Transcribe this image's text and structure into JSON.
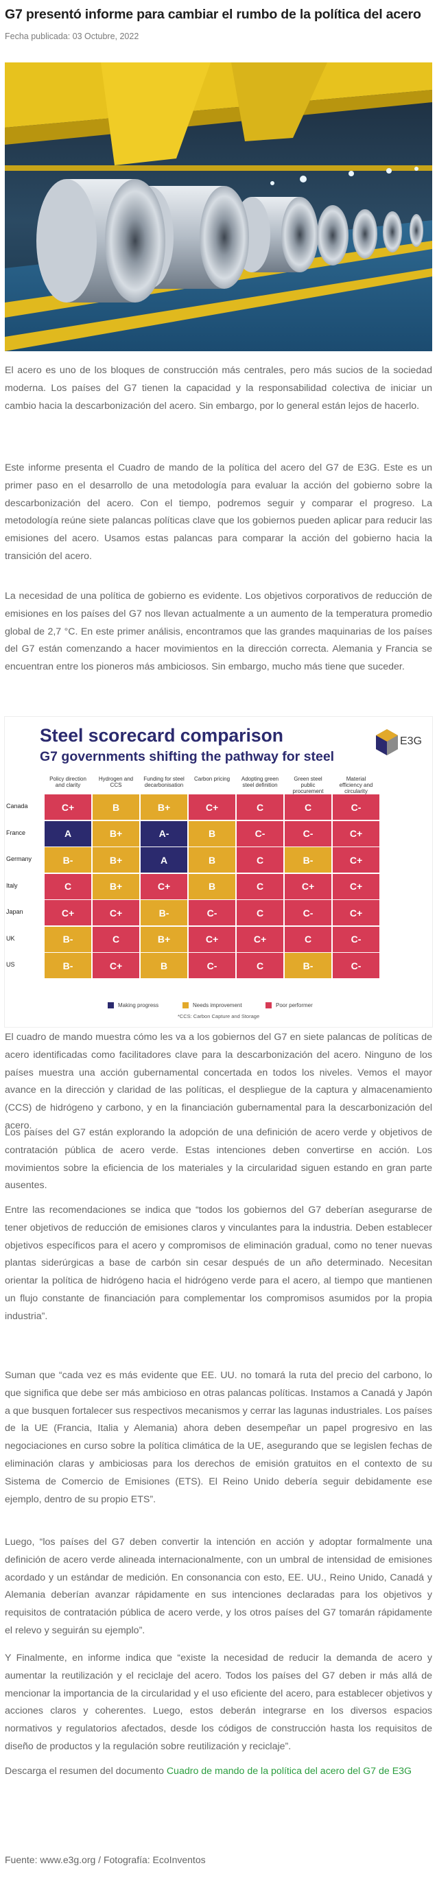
{
  "article": {
    "title": "G7 presentó informe para cambiar el rumbo de la política del acero",
    "date": "Fecha publicada: 03 Octubre, 2022"
  },
  "paragraphs": [
    "El acero es uno de los bloques de construcción más centrales, pero más sucios de la sociedad moderna. Los países del G7 tienen la capacidad y la responsabilidad colectiva de iniciar un cambio hacia la descarbonización del acero. Sin embargo, por lo general están lejos de hacerlo.",
    "Este informe presenta el Cuadro de mando de la política del acero del G7 de E3G. Este es un primer paso en el desarrollo de una metodología para evaluar la acción del gobierno sobre la descarbonización del acero. Con el tiempo, podremos seguir y comparar el progreso. La metodología reúne siete palancas políticas clave que los gobiernos pueden aplicar para reducir las emisiones del acero. Usamos estas palancas para comparar la acción del gobierno hacia la transición del acero.",
    "La necesidad de una política de gobierno es evidente. Los objetivos corporativos de reducción de emisiones en los países del G7 nos llevan actualmente a un aumento de la temperatura promedio global de 2,7 °C. En este primer análisis, encontramos que las grandes maquinarias de los países del G7 están comenzando a hacer movimientos en la dirección correcta. Alemania y Francia se encuentran entre los pioneros más ambiciosos. Sin embargo, mucho más tiene que suceder.",
    "El cuadro de mando muestra cómo les va a los gobiernos del G7 en siete palancas de políticas de acero identificadas como facilitadores clave para la descarbonización del acero. Ninguno de los países muestra una acción gubernamental concertada en todos los niveles. Vemos el mayor avance en la dirección y claridad de las políticas, el despliegue de la captura y almacenamiento (CCS) de hidrógeno y carbono, y en la financiación gubernamental para la descarbonización del acero.",
    "Los países del G7 están explorando la adopción de una definición de acero verde y objetivos de contratación pública de acero verde. Estas intenciones deben convertirse en acción. Los movimientos sobre la eficiencia de los materiales y la circularidad siguen estando en gran parte ausentes.",
    "Entre las recomendaciones se indica que “todos los gobiernos del G7 deberían asegurarse de tener objetivos de reducción de emisiones claros y vinculantes para la industria. Deben establecer objetivos específicos para el acero y compromisos de eliminación gradual, como no tener nuevas plantas siderúrgicas a base de carbón sin cesar después de un año determinado. Necesitan orientar la política de hidrógeno hacia el hidrógeno verde para el acero, al tiempo que mantienen un flujo constante de financiación para complementar los compromisos asumidos por la propia industria”.",
    "Suman que “cada vez es más evidente que EE. UU. no tomará la ruta del precio del carbono, lo que significa que debe ser más ambicioso en otras palancas políticas. Instamos a Canadá y Japón a que busquen fortalecer sus respectivos mecanismos y cerrar las lagunas industriales. Los países de la UE (Francia, Italia y Alemania) ahora deben desempeñar un papel progresivo en las negociaciones en curso sobre la política climática de la UE, asegurando que se legislen fechas de eliminación claras y ambiciosas para los derechos de emisión gratuitos en el contexto de su Sistema de Comercio de Emisiones (ETS). El Reino Unido debería seguir debidamente ese ejemplo, dentro de su propio ETS”.",
    "Luego, “los países del G7 deben convertir la intención en acción y adoptar formalmente una definición de acero verde alineada internacionalmente, con un umbral de intensidad de emisiones acordado y un estándar de medición. En consonancia con esto, EE. UU., Reino Unido, Canadá y Alemania deberían avanzar rápidamente en sus intenciones declaradas para los objetivos y requisitos de contratación pública de acero verde, y los otros países del G7 tomarán rápidamente el relevo y seguirán su ejemplo”.",
    "Y Finalmente, en informe indica que “existe la necesidad de reducir la demanda de acero y aumentar la reutilización y el reciclaje del acero. Todos los países del G7 deben ir más allá de mencionar la importancia de la circularidad y el uso eficiente del acero, para establecer objetivos y acciones claros y coherentes. Luego, estos deberán integrarse en los diversos espacios normativos y regulatorios afectados, desde los códigos de construcción hasta los requisitos de diseño de productos y la regulación sobre reutilización y reciclaje”."
  ],
  "download": {
    "prefix": "Descarga el resumen del documento ",
    "link": "Cuadro de mando de la política del acero del G7 de E3G"
  },
  "source": "Fuente: www.e3g.org / Fotografía: EcoInventos",
  "scorecard": {
    "title": "Steel scorecard comparison",
    "subtitle": "G7 governments shifting the pathway for steel",
    "logo_text": "E3G",
    "columns": [
      "Policy direction and clarity",
      "Hydrogen and CCS",
      "Funding for steel decarbonisation",
      "Carbon pricing",
      "Adopting green steel definition",
      "Green steel public procurement",
      "Material efficiency and circularity"
    ],
    "rows": [
      {
        "country": "Canada",
        "grades": [
          "C+",
          "B",
          "B+",
          "C+",
          "C",
          "C",
          "C-"
        ]
      },
      {
        "country": "France",
        "grades": [
          "A",
          "B+",
          "A-",
          "B",
          "C-",
          "C-",
          "C+"
        ]
      },
      {
        "country": "Germany",
        "grades": [
          "B-",
          "B+",
          "A",
          "B",
          "C",
          "B-",
          "C+"
        ]
      },
      {
        "country": "Italy",
        "grades": [
          "C",
          "B+",
          "C+",
          "B",
          "C",
          "C+",
          "C+"
        ]
      },
      {
        "country": "Japan",
        "grades": [
          "C+",
          "C+",
          "B-",
          "C-",
          "C",
          "C-",
          "C+"
        ]
      },
      {
        "country": "UK",
        "grades": [
          "B-",
          "C",
          "B+",
          "C+",
          "C+",
          "C",
          "C-"
        ]
      },
      {
        "country": "US",
        "grades": [
          "B-",
          "C+",
          "B",
          "C-",
          "C",
          "B-",
          "C-"
        ]
      }
    ],
    "legend": [
      "Making progress",
      "Needs improvement",
      "Poor performer"
    ],
    "footnote": "*CCS: Carbon Capture and Storage",
    "colors": {
      "progress": "#2b2a6e",
      "improve": "#e2a92a",
      "poor": "#d63b55"
    }
  }
}
